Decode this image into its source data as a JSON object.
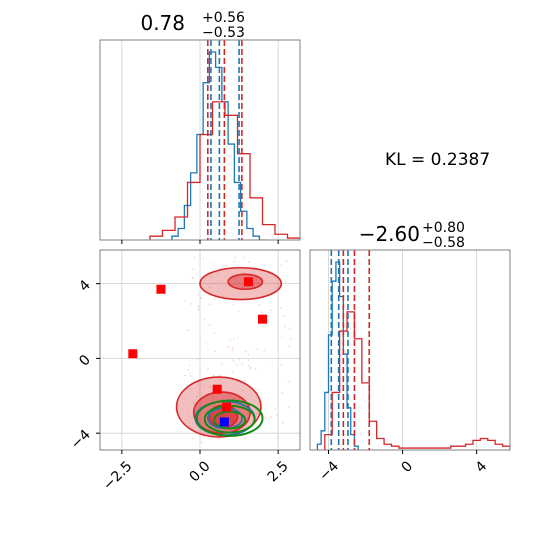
{
  "colors": {
    "red": "#d62728",
    "blue": "#1f77b4",
    "green": "#168a16",
    "marker_red": "#ff0000",
    "marker_blue": "#0000ff",
    "grid": "#d0d0d0",
    "frame": "#7f7f7f"
  },
  "kl_text": "KL = 0.2387",
  "chart_data": [
    {
      "type": "line",
      "panel": "marginal-param-1",
      "title_value": "0.78",
      "title_upper": "+0.56",
      "title_lower": "−0.53",
      "xlim": [
        -3.2,
        3.2
      ],
      "grid": true,
      "quantile_lines": {
        "red": [
          0.25,
          0.78,
          1.34
        ],
        "blue": [
          0.35,
          0.62,
          1.25
        ]
      },
      "series": [
        {
          "color": "blue",
          "bin_edges": [
            -0.9,
            -0.7,
            -0.5,
            -0.3,
            -0.1,
            0.1,
            0.3,
            0.5,
            0.7,
            0.9,
            1.1,
            1.3,
            1.5,
            1.7,
            1.9,
            2.1
          ],
          "counts": [
            0.02,
            0.06,
            0.18,
            0.35,
            0.55,
            0.82,
            0.98,
            0.9,
            0.72,
            0.5,
            0.3,
            0.15,
            0.06,
            0.02,
            0.0
          ]
        },
        {
          "color": "red",
          "bin_edges": [
            -1.6,
            -1.2,
            -0.8,
            -0.4,
            0.0,
            0.4,
            0.8,
            1.2,
            1.6,
            2.0,
            2.4,
            2.8,
            3.2
          ],
          "counts": [
            0.02,
            0.05,
            0.12,
            0.3,
            0.55,
            0.72,
            0.65,
            0.45,
            0.22,
            0.08,
            0.03,
            0.01
          ]
        }
      ]
    },
    {
      "type": "scatter",
      "panel": "joint-param-1-2",
      "xlim": [
        -3.2,
        3.2
      ],
      "ylim": [
        -4.9,
        5.8
      ],
      "grid": true,
      "x_ticks": [
        "−2.5",
        "0.0",
        "2.5"
      ],
      "x_tick_values": [
        -2.5,
        0.0,
        2.5
      ],
      "y_ticks": [
        "4",
        "0",
        "−4"
      ],
      "y_tick_values": [
        4,
        0,
        -4
      ],
      "red_markers": [
        {
          "x": -1.25,
          "y": 3.7
        },
        {
          "x": -2.15,
          "y": 0.25
        },
        {
          "x": 1.55,
          "y": 4.1
        },
        {
          "x": 2.0,
          "y": 2.1
        },
        {
          "x": 0.55,
          "y": -1.65
        },
        {
          "x": 0.85,
          "y": -2.6
        }
      ],
      "blue_markers": [
        {
          "x": 0.78,
          "y": -3.4
        }
      ],
      "red_regions": [
        {
          "cx": 0.6,
          "cy": -2.6,
          "rx": 1.35,
          "ry": 1.6,
          "level": 1
        },
        {
          "cx": 0.7,
          "cy": -2.9,
          "rx": 0.9,
          "ry": 1.1,
          "level": 2
        },
        {
          "cx": 0.75,
          "cy": -3.1,
          "rx": 0.45,
          "ry": 0.6,
          "level": 3
        },
        {
          "cx": 1.3,
          "cy": 4.0,
          "rx": 1.3,
          "ry": 0.85,
          "level": 1
        },
        {
          "cx": 1.45,
          "cy": 4.1,
          "rx": 0.55,
          "ry": 0.4,
          "level": 2
        }
      ],
      "blue_contours": [
        {
          "cx": 0.8,
          "cy": -3.2,
          "rx": 0.95,
          "ry": 0.9
        },
        {
          "cx": 0.8,
          "cy": -3.2,
          "rx": 0.55,
          "ry": 0.55
        }
      ],
      "green_contours": [
        {
          "cx": 0.95,
          "cy": -3.2,
          "rx": 1.05,
          "ry": 0.95
        },
        {
          "cx": 0.95,
          "cy": -3.25,
          "rx": 0.8,
          "ry": 0.72
        },
        {
          "cx": 0.95,
          "cy": -3.3,
          "rx": 0.5,
          "ry": 0.45
        }
      ]
    },
    {
      "type": "line",
      "panel": "marginal-param-2",
      "title_value": "−2.60",
      "title_upper": "+0.80",
      "title_lower": "−0.58",
      "xlim": [
        -5.0,
        5.8
      ],
      "grid": true,
      "x_ticks": [
        "−4",
        "0",
        "4"
      ],
      "x_tick_values": [
        -4,
        0,
        4
      ],
      "quantile_lines": {
        "red": [
          -3.2,
          -2.6,
          -1.8
        ],
        "blue": [
          -3.85,
          -3.45,
          -2.95
        ]
      },
      "series": [
        {
          "color": "blue",
          "bin_edges": [
            -4.6,
            -4.4,
            -4.2,
            -4.0,
            -3.8,
            -3.6,
            -3.4,
            -3.2,
            -3.0,
            -2.8,
            -2.6,
            -2.4
          ],
          "counts": [
            0.03,
            0.1,
            0.3,
            0.6,
            0.88,
            0.98,
            0.8,
            0.5,
            0.22,
            0.08,
            0.02
          ]
        },
        {
          "color": "red",
          "bin_edges": [
            -4.2,
            -3.8,
            -3.4,
            -3.0,
            -2.6,
            -2.2,
            -1.8,
            -1.4,
            -1.0,
            -0.6,
            -0.2,
            0.2,
            0.6,
            1.0,
            1.4,
            1.8,
            2.2,
            2.6,
            3.0,
            3.4,
            3.8,
            4.2,
            4.6,
            5.0,
            5.4,
            5.8
          ],
          "counts": [
            0.08,
            0.3,
            0.62,
            0.72,
            0.58,
            0.35,
            0.15,
            0.06,
            0.03,
            0.02,
            0.01,
            0.01,
            0.01,
            0.01,
            0.01,
            0.01,
            0.01,
            0.02,
            0.02,
            0.03,
            0.05,
            0.06,
            0.05,
            0.03,
            0.02
          ]
        }
      ]
    }
  ]
}
